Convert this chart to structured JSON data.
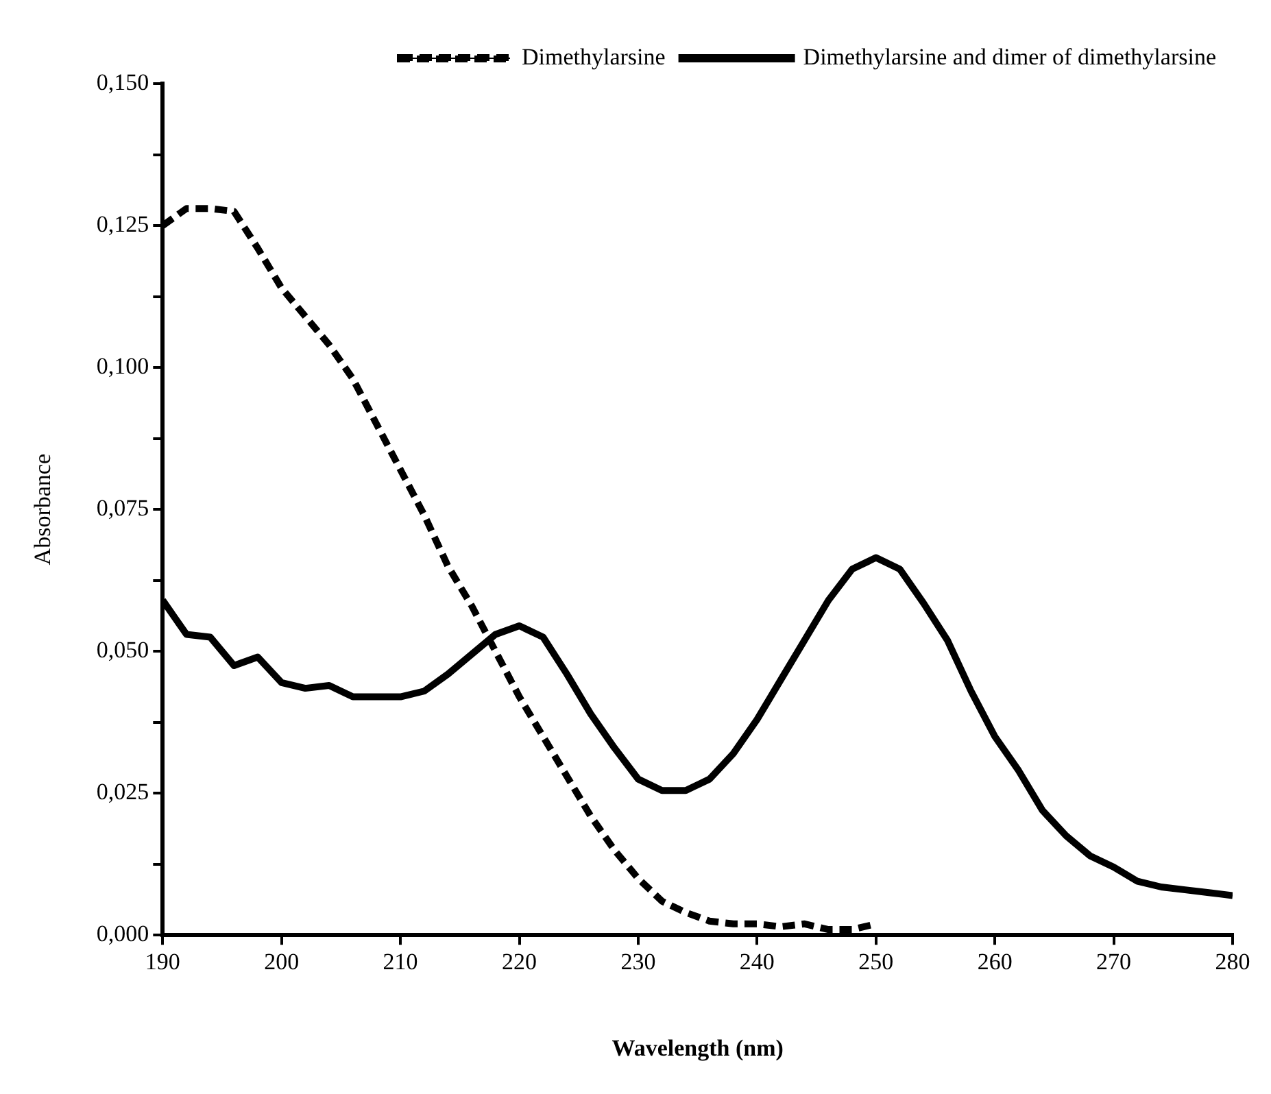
{
  "chart_data": {
    "type": "line",
    "xlabel": "Wavelength (nm)",
    "ylabel": "Absorbance",
    "xlim": [
      190,
      280
    ],
    "xticks": [
      190,
      200,
      210,
      220,
      230,
      240,
      250,
      260,
      270,
      280
    ],
    "ylim": [
      0,
      0.15
    ],
    "yticks": [
      {
        "value": 0,
        "label": "0,000"
      },
      {
        "value": 0.0125,
        "label": null
      },
      {
        "value": 0.025,
        "label": "0,025"
      },
      {
        "value": 0.0375,
        "label": null
      },
      {
        "value": 0.05,
        "label": "0,050"
      },
      {
        "value": 0.0625,
        "label": null
      },
      {
        "value": 0.075,
        "label": "0,075"
      },
      {
        "value": 0.0875,
        "label": null
      },
      {
        "value": 0.1,
        "label": "0,100"
      },
      {
        "value": 0.1125,
        "label": null
      },
      {
        "value": 0.125,
        "label": "0,125"
      },
      {
        "value": 0.1375,
        "label": null
      },
      {
        "value": 0.15,
        "label": "0,150"
      }
    ],
    "grid": false,
    "legend": "top right",
    "marker": "none",
    "series": [
      {
        "name": "Dimethylarsine",
        "color": "#000000",
        "line_style": "dashed",
        "x": [
          190,
          192,
          194,
          196,
          198,
          200,
          202,
          204,
          206,
          208,
          210,
          212,
          214,
          216,
          218,
          220,
          222,
          224,
          226,
          228,
          230,
          232,
          234,
          236,
          238,
          240,
          242,
          244,
          246,
          248,
          250
        ],
        "values": [
          0.125,
          0.128,
          0.128,
          0.1275,
          0.121,
          0.114,
          0.109,
          0.104,
          0.098,
          0.09,
          0.082,
          0.074,
          0.065,
          0.058,
          0.05,
          0.042,
          0.035,
          0.028,
          0.021,
          0.015,
          0.01,
          0.006,
          0.004,
          0.0025,
          0.002,
          0.002,
          0.0015,
          0.002,
          0.001,
          0.001,
          0.002
        ]
      },
      {
        "name": "Dimethylarsine and dimer of dimethylarsine",
        "color": "#000000",
        "line_style": "solid",
        "x": [
          190,
          192,
          194,
          196,
          198,
          200,
          202,
          204,
          206,
          208,
          210,
          212,
          214,
          216,
          218,
          220,
          222,
          224,
          226,
          228,
          230,
          232,
          234,
          236,
          238,
          240,
          242,
          244,
          246,
          248,
          250,
          252,
          254,
          256,
          258,
          260,
          262,
          264,
          266,
          268,
          270,
          272,
          274,
          276,
          278,
          280
        ],
        "values": [
          0.059,
          0.053,
          0.0525,
          0.0475,
          0.049,
          0.0445,
          0.0435,
          0.044,
          0.042,
          0.042,
          0.042,
          0.043,
          0.046,
          0.0495,
          0.053,
          0.0545,
          0.0525,
          0.046,
          0.039,
          0.033,
          0.0275,
          0.0255,
          0.0255,
          0.0275,
          0.032,
          0.038,
          0.045,
          0.052,
          0.059,
          0.0645,
          0.0665,
          0.0645,
          0.0585,
          0.052,
          0.043,
          0.035,
          0.029,
          0.022,
          0.0175,
          0.014,
          0.012,
          0.0095,
          0.0085,
          0.008,
          0.0075,
          0.007
        ]
      }
    ]
  }
}
